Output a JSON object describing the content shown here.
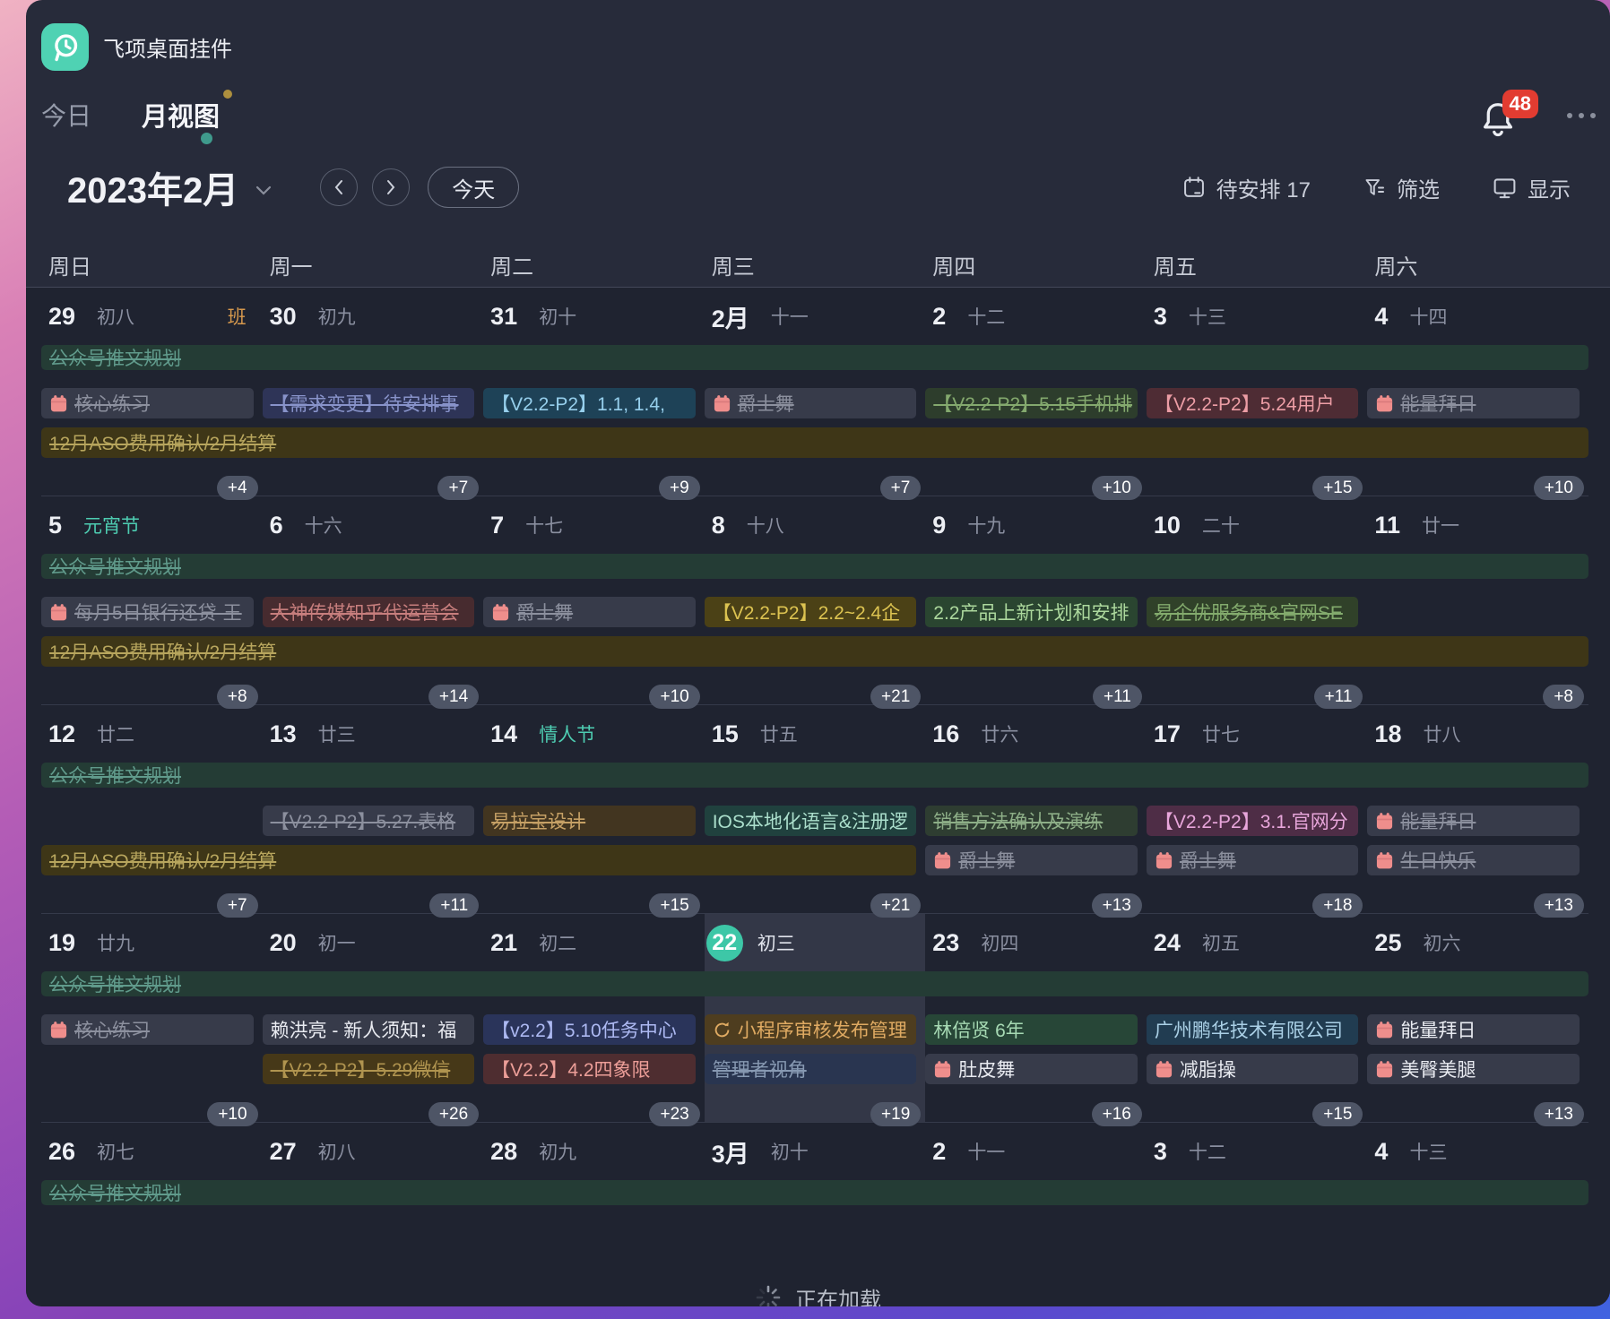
{
  "window": {
    "app_title": "飞项桌面挂件"
  },
  "tabs": {
    "today": "今日",
    "month": "月视图"
  },
  "controls": {
    "month_title": "2023年2月",
    "today_button": "今天",
    "pending": "待安排 17",
    "filter": "筛选",
    "display": "显示",
    "notifications": "48"
  },
  "weekday_headers": [
    "周日",
    "周一",
    "周二",
    "周三",
    "周四",
    "周五",
    "周六"
  ],
  "loading": "正在加载",
  "colors": {
    "accent_teal": "#3dc7a7",
    "badge_red": "#e23c31",
    "work_tag_orange": "#d89a4d",
    "holiday_teal": "#4ecdb2",
    "panel": "#272b3a",
    "calendar_bg": "#1f2330",
    "more_badge_bg": "#4e5566",
    "task_icon_salmon": "#ef8e8c",
    "events": {
      "greenSpan": {
        "bg": "#243c35",
        "fg": "#609a8b"
      },
      "oliveSpan": {
        "bg": "#3e3617",
        "fg": "#b7a55d"
      },
      "grayD": {
        "bg": "#373b4a",
        "fg": "#8c909e"
      },
      "grayL": {
        "bg": "#373b4a",
        "fg": "#e9ebf1"
      },
      "navyD": {
        "bg": "#2e3457",
        "fg": "#8893ca"
      },
      "blueL": {
        "bg": "#1e4257",
        "fg": "#96cfec"
      },
      "greenD1": {
        "bg": "#2d3d2c",
        "fg": "#84a96e"
      },
      "maroonL1": {
        "bg": "#4e2c34",
        "fg": "#ec9da5"
      },
      "maroonD": {
        "bg": "#472b2f",
        "fg": "#c77e7d"
      },
      "yellowL": {
        "bg": "#4b4116",
        "fg": "#dcc351"
      },
      "greenL2": {
        "bg": "#2a4530",
        "fg": "#acd89d"
      },
      "greenD2": {
        "bg": "#304129",
        "fg": "#83ab6d"
      },
      "brownD": {
        "bg": "#423520",
        "fg": "#c5a065"
      },
      "tealL": {
        "bg": "#20413e",
        "fg": "#abdfcc"
      },
      "greenD3": {
        "bg": "#2e3d31",
        "fg": "#8dae87"
      },
      "plumL": {
        "bg": "#4e2d46",
        "fg": "#e8a6db"
      },
      "navyL2": {
        "bg": "#2a345a",
        "fg": "#adb9f2"
      },
      "brownL": {
        "bg": "#4e3d1f",
        "fg": "#dfaa62"
      },
      "oliveD": {
        "bg": "#463818",
        "fg": "#b0944f"
      },
      "maroonL2": {
        "bg": "#4e2d30",
        "fg": "#ec9e98"
      },
      "slateD": {
        "bg": "#293550",
        "fg": "#8799b2"
      },
      "greenL3": {
        "bg": "#274637",
        "fg": "#a6d9b3"
      },
      "cyanL": {
        "bg": "#213c51",
        "fg": "#aad0e6"
      }
    }
  },
  "weeks": [
    {
      "days": [
        {
          "n": "29",
          "l": "初八",
          "tag": "班"
        },
        {
          "n": "30",
          "l": "初九"
        },
        {
          "n": "31",
          "l": "初十"
        },
        {
          "n": "2月",
          "l": "十一"
        },
        {
          "n": "2",
          "l": "十二"
        },
        {
          "n": "3",
          "l": "十三"
        },
        {
          "n": "4",
          "l": "十四"
        }
      ],
      "rows": [
        [
          {
            "c": 0,
            "span": 7,
            "slim": 1,
            "s": 1,
            "k": "greenSpan",
            "t": "公众号推文规划"
          }
        ],
        [
          {
            "c": 0,
            "s": 1,
            "i": "cal",
            "k": "grayD",
            "t": "核心练习"
          },
          {
            "c": 1,
            "s": 1,
            "k": "navyD",
            "t": "【需求变更】待安排事"
          },
          {
            "c": 2,
            "k": "blueL",
            "t": "【V2.2-P2】1.1, 1.4,"
          },
          {
            "c": 3,
            "s": 1,
            "i": "cal",
            "k": "grayD",
            "t": "爵士舞"
          },
          {
            "c": 4,
            "s": 1,
            "k": "greenD1",
            "t": "【V2.2-P2】5.15手机排"
          },
          {
            "c": 5,
            "k": "maroonL1",
            "t": "【V2.2-P2】5.24用户"
          },
          {
            "c": 6,
            "s": 1,
            "i": "cal",
            "k": "grayD",
            "t": "能量拜日"
          }
        ],
        [
          {
            "c": 0,
            "span": 7,
            "s": 1,
            "k": "oliveSpan",
            "t": "12月ASO费用确认/2月结算"
          }
        ]
      ],
      "badges": [
        "+4",
        "+7",
        "+9",
        "+7",
        "+10",
        "+15",
        "+10"
      ]
    },
    {
      "days": [
        {
          "n": "5",
          "l": "元宵节",
          "holiday": true
        },
        {
          "n": "6",
          "l": "十六"
        },
        {
          "n": "7",
          "l": "十七"
        },
        {
          "n": "8",
          "l": "十八"
        },
        {
          "n": "9",
          "l": "十九"
        },
        {
          "n": "10",
          "l": "二十"
        },
        {
          "n": "11",
          "l": "廿一"
        }
      ],
      "rows": [
        [
          {
            "c": 0,
            "span": 7,
            "slim": 1,
            "s": 1,
            "k": "greenSpan",
            "t": "公众号推文规划"
          }
        ],
        [
          {
            "c": 0,
            "s": 1,
            "i": "cal",
            "k": "grayD",
            "t": "每月5日银行还贷-王"
          },
          {
            "c": 1,
            "s": 1,
            "k": "maroonD",
            "t": "大神传媒知乎代运营会"
          },
          {
            "c": 2,
            "s": 1,
            "i": "cal",
            "k": "grayD",
            "t": "爵士舞"
          },
          {
            "c": 3,
            "k": "yellowL",
            "t": "【V2.2-P2】2.2~2.4企"
          },
          {
            "c": 4,
            "k": "greenL2",
            "t": "2.2产品上新计划和安排"
          },
          {
            "c": 5,
            "s": 1,
            "k": "greenD2",
            "t": "易企优服务商&官网SE"
          }
        ],
        [
          {
            "c": 0,
            "span": 7,
            "s": 1,
            "k": "oliveSpan",
            "t": "12月ASO费用确认/2月结算"
          }
        ]
      ],
      "badges": [
        "+8",
        "+14",
        "+10",
        "+21",
        "+11",
        "+11",
        "+8"
      ]
    },
    {
      "days": [
        {
          "n": "12",
          "l": "廿二"
        },
        {
          "n": "13",
          "l": "廿三"
        },
        {
          "n": "14",
          "l": "情人节",
          "holiday": true
        },
        {
          "n": "15",
          "l": "廿五"
        },
        {
          "n": "16",
          "l": "廿六"
        },
        {
          "n": "17",
          "l": "廿七"
        },
        {
          "n": "18",
          "l": "廿八"
        }
      ],
      "rows": [
        [
          {
            "c": 0,
            "span": 7,
            "slim": 1,
            "s": 1,
            "k": "greenSpan",
            "t": "公众号推文规划"
          }
        ],
        [
          {
            "c": 1,
            "s": 1,
            "k": "grayD",
            "t": "【V2.2-P2】5.27.表格"
          },
          {
            "c": 2,
            "s": 1,
            "k": "brownD",
            "t": "易拉宝设计"
          },
          {
            "c": 3,
            "k": "tealL",
            "t": "IOS本地化语言&注册逻"
          },
          {
            "c": 4,
            "s": 1,
            "k": "greenD3",
            "t": "销售方法确认及演练"
          },
          {
            "c": 5,
            "k": "plumL",
            "t": "【V2.2-P2】3.1.官网分"
          },
          {
            "c": 6,
            "s": 1,
            "i": "cal",
            "k": "grayD",
            "t": "能量拜日"
          }
        ],
        [
          {
            "c": 0,
            "span": 4,
            "s": 1,
            "k": "oliveSpan",
            "t": "12月ASO费用确认/2月结算"
          },
          {
            "c": 4,
            "s": 1,
            "i": "cal",
            "k": "grayD",
            "t": "爵士舞"
          },
          {
            "c": 5,
            "s": 1,
            "i": "cal",
            "k": "grayD",
            "t": "爵士舞"
          },
          {
            "c": 6,
            "s": 1,
            "i": "cal",
            "k": "grayD",
            "t": "生日快乐"
          }
        ]
      ],
      "badges": [
        "+7",
        "+11",
        "+15",
        "+21",
        "+13",
        "+18",
        "+13"
      ]
    },
    {
      "today_col": 3,
      "days": [
        {
          "n": "19",
          "l": "廿九"
        },
        {
          "n": "20",
          "l": "初一"
        },
        {
          "n": "21",
          "l": "初二"
        },
        {
          "n": "22",
          "l": "初三",
          "today": true
        },
        {
          "n": "23",
          "l": "初四"
        },
        {
          "n": "24",
          "l": "初五"
        },
        {
          "n": "25",
          "l": "初六"
        }
      ],
      "rows": [
        [
          {
            "c": 0,
            "span": 7,
            "slim": 1,
            "s": 1,
            "k": "greenSpan",
            "t": "公众号推文规划"
          }
        ],
        [
          {
            "c": 0,
            "s": 1,
            "i": "cal",
            "k": "grayD",
            "t": "核心练习"
          },
          {
            "c": 1,
            "k": "grayL",
            "t": "赖洪亮 - 新人须知：福"
          },
          {
            "c": 2,
            "k": "navyL2",
            "t": "【v2.2】5.10任务中心"
          },
          {
            "c": 3,
            "i": "sync",
            "k": "brownL",
            "t": "小程序审核发布管理"
          },
          {
            "c": 4,
            "k": "greenL3",
            "t": "林倍贤 6年"
          },
          {
            "c": 5,
            "k": "cyanL",
            "t": "广州鹏华技术有限公司"
          },
          {
            "c": 6,
            "i": "cal",
            "k": "grayL",
            "t": "能量拜日"
          }
        ],
        [
          {
            "c": 1,
            "s": 1,
            "k": "oliveD",
            "t": "【V2.2-P2】5.29微信"
          },
          {
            "c": 2,
            "k": "maroonL2",
            "t": "【V2.2】4.2四象限"
          },
          {
            "c": 3,
            "s": 1,
            "k": "slateD",
            "t": "管理者视角"
          },
          {
            "c": 4,
            "i": "cal",
            "k": "grayL",
            "t": "肚皮舞"
          },
          {
            "c": 5,
            "i": "cal",
            "k": "grayL",
            "t": "减脂操"
          },
          {
            "c": 6,
            "i": "cal",
            "k": "grayL",
            "t": "美臀美腿"
          }
        ]
      ],
      "badges": [
        "+10",
        "+26",
        "+23",
        "+19",
        "+16",
        "+15",
        "+13"
      ]
    },
    {
      "partial": true,
      "days": [
        {
          "n": "26",
          "l": "初七"
        },
        {
          "n": "27",
          "l": "初八"
        },
        {
          "n": "28",
          "l": "初九"
        },
        {
          "n": "3月",
          "l": "初十"
        },
        {
          "n": "2",
          "l": "十一"
        },
        {
          "n": "3",
          "l": "十二"
        },
        {
          "n": "4",
          "l": "十三"
        }
      ],
      "rows": [
        [
          {
            "c": 0,
            "span": 7,
            "slim": 1,
            "s": 1,
            "k": "greenSpan",
            "t": "公众号推文规划"
          }
        ]
      ],
      "badges": []
    }
  ]
}
